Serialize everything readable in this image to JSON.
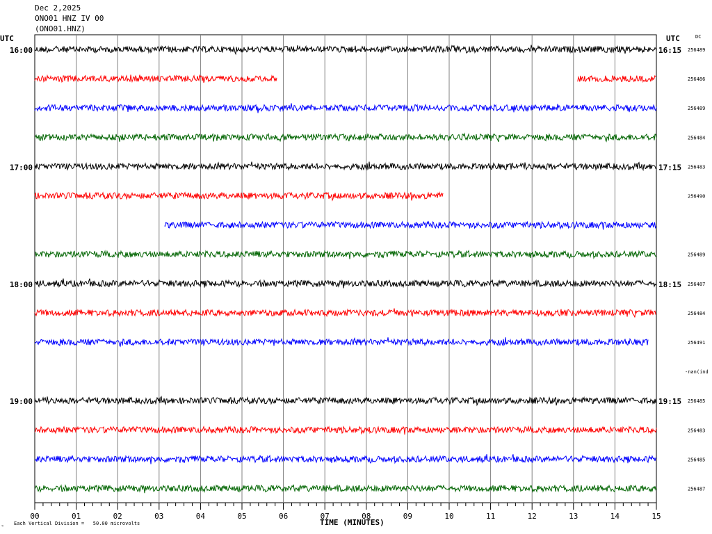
{
  "header": {
    "date": "Dec 2,2025",
    "station": "ONO01 HNZ IV 00",
    "channel": "(ONO01.HNZ)"
  },
  "labels": {
    "utc_left": "UTC",
    "utc_right": "UTC",
    "dc": "DC",
    "footer_note": "Each Vertical Division =   50.00 microvolts",
    "corner_mark": "⌁"
  },
  "colors": {
    "black": "#000000",
    "red": "#ff0000",
    "blue": "#0000ff",
    "green": "#006400",
    "grid": "#808080"
  },
  "chart_data": {
    "type": "line",
    "title": "ONO01 HNZ IV 00",
    "xlabel": "TIME (MINUTES)",
    "ylabel": "",
    "xlim": [
      0,
      15
    ],
    "x_ticks": [
      "00",
      "01",
      "02",
      "03",
      "04",
      "05",
      "06",
      "07",
      "08",
      "09",
      "10",
      "11",
      "12",
      "13",
      "14",
      "15"
    ],
    "hour_labels_left": [
      {
        "row": 0,
        "label": "16:00"
      },
      {
        "row": 4,
        "label": "17:00"
      },
      {
        "row": 8,
        "label": "18:00"
      },
      {
        "row": 12,
        "label": "19:00"
      }
    ],
    "hour_labels_right": [
      {
        "row": 0,
        "label": "16:15"
      },
      {
        "row": 4,
        "label": "17:15"
      },
      {
        "row": 8,
        "label": "18:15"
      },
      {
        "row": 12,
        "label": "19:15"
      }
    ],
    "rows": [
      {
        "color": "black",
        "segments": [
          [
            0,
            15
          ]
        ],
        "dc": "256489"
      },
      {
        "color": "red",
        "segments": [
          [
            0,
            5.85
          ],
          [
            13.1,
            15
          ]
        ],
        "dc": "256486"
      },
      {
        "color": "blue",
        "segments": [
          [
            0,
            15
          ]
        ],
        "dc": "256489"
      },
      {
        "color": "green",
        "segments": [
          [
            0,
            15
          ]
        ],
        "dc": "256484"
      },
      {
        "color": "black",
        "segments": [
          [
            0,
            15
          ]
        ],
        "dc": "256483"
      },
      {
        "color": "red",
        "segments": [
          [
            0,
            9.85
          ]
        ],
        "dc": "256490"
      },
      {
        "color": "blue",
        "segments": [
          [
            3.13,
            15
          ]
        ],
        "dc": ""
      },
      {
        "color": "green",
        "segments": [
          [
            0,
            15
          ]
        ],
        "dc": "256489"
      },
      {
        "color": "black",
        "segments": [
          [
            0,
            15
          ]
        ],
        "dc": "256487"
      },
      {
        "color": "red",
        "segments": [
          [
            0,
            15
          ]
        ],
        "dc": "256484"
      },
      {
        "color": "blue",
        "segments": [
          [
            0,
            14.8
          ]
        ],
        "dc": "256491"
      },
      {
        "color": "green",
        "segments": [],
        "dc": "-nan(ind"
      },
      {
        "color": "black",
        "segments": [
          [
            0,
            15
          ]
        ],
        "dc": "256485"
      },
      {
        "color": "red",
        "segments": [
          [
            0,
            15
          ]
        ],
        "dc": "256483"
      },
      {
        "color": "blue",
        "segments": [
          [
            0,
            15
          ]
        ],
        "dc": "256485"
      },
      {
        "color": "green",
        "segments": [
          [
            0,
            15
          ]
        ],
        "dc": "256487"
      }
    ]
  }
}
